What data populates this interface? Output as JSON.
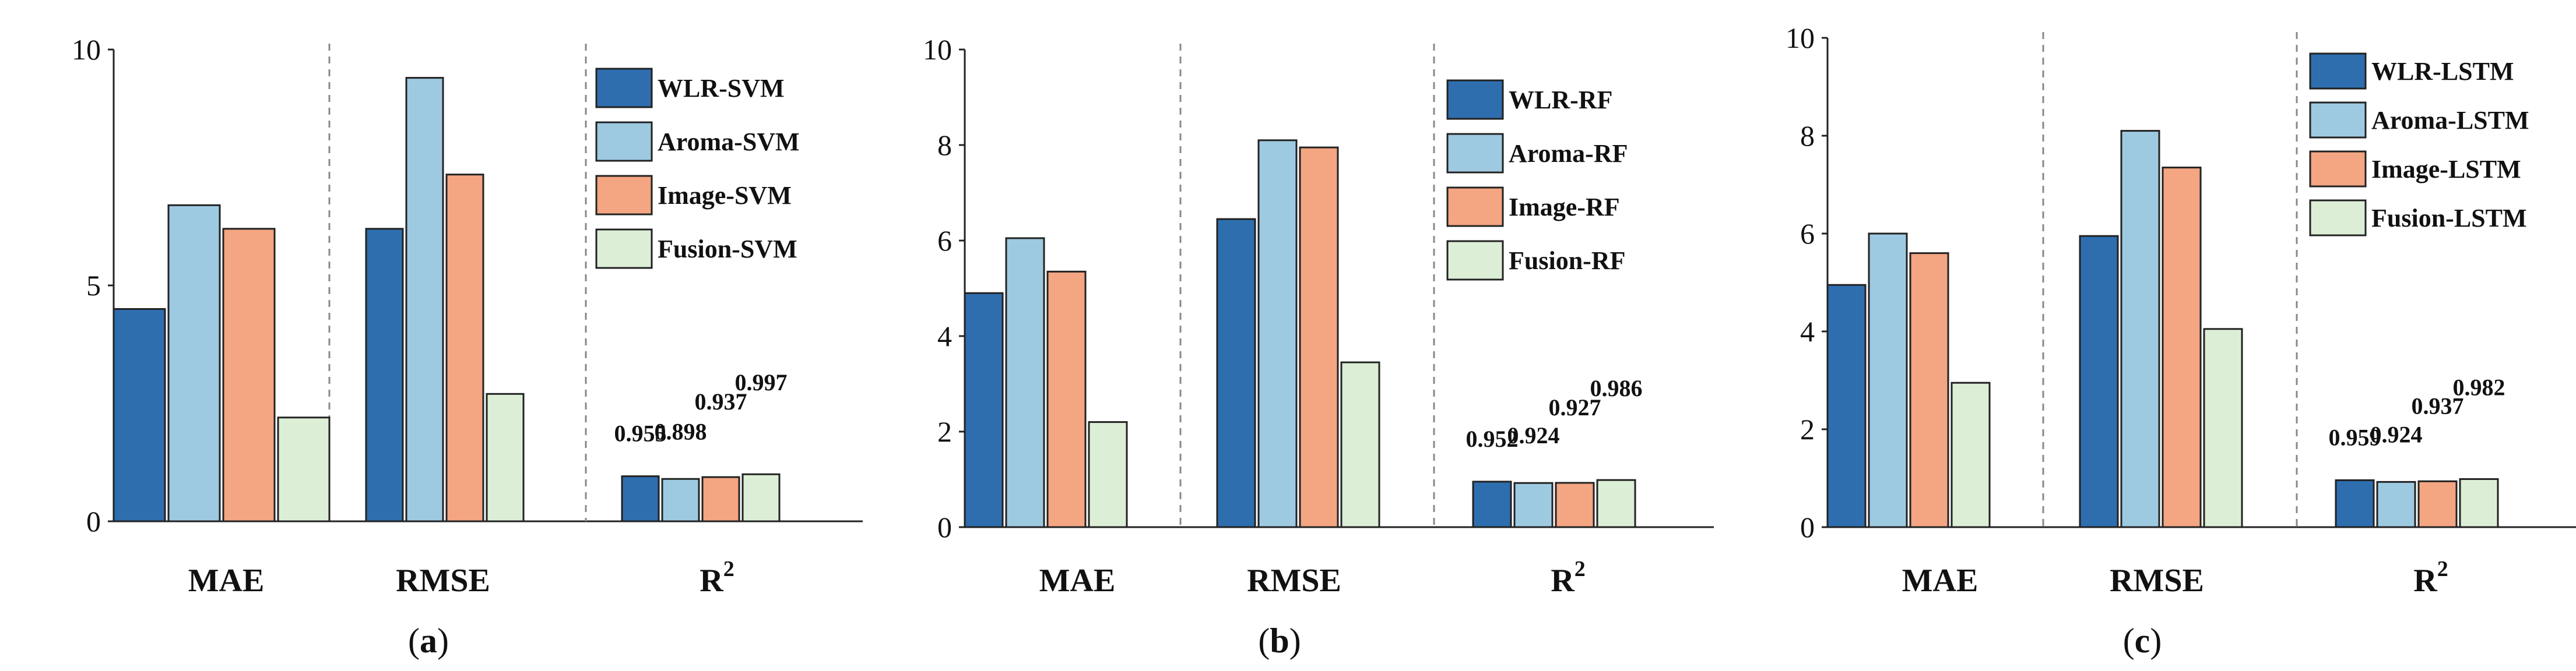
{
  "series_colors": [
    "#2e6eaf",
    "#9ecae1",
    "#f4a582",
    "#dcefd6"
  ],
  "chart_data": [
    {
      "type": "bar",
      "panel": "(a)",
      "panel_letter": "a",
      "categories": [
        "MAE",
        "RMSE",
        "R2"
      ],
      "ylim": [
        0,
        10
      ],
      "yticks": [
        "0",
        "5",
        "10"
      ],
      "ytick_values": [
        0,
        5,
        10
      ],
      "series": [
        {
          "name": "WLR-SVM",
          "values": [
            4.5,
            6.2,
            0.955
          ],
          "r2_label": "0.955"
        },
        {
          "name": "Aroma-SVM",
          "values": [
            6.7,
            9.4,
            0.898
          ],
          "r2_label": "0.898"
        },
        {
          "name": "Image-SVM",
          "values": [
            6.2,
            7.35,
            0.937
          ],
          "r2_label": "0.937"
        },
        {
          "name": "Fusion-SVM",
          "values": [
            2.2,
            2.7,
            0.997
          ],
          "r2_label": "0.997"
        }
      ]
    },
    {
      "type": "bar",
      "panel": "(b)",
      "panel_letter": "b",
      "categories": [
        "MAE",
        "RMSE",
        "R2"
      ],
      "ylim": [
        0,
        10
      ],
      "yticks": [
        "0",
        "2",
        "4",
        "6",
        "8",
        "10"
      ],
      "ytick_values": [
        0,
        2,
        4,
        6,
        8,
        10
      ],
      "series": [
        {
          "name": "WLR-RF",
          "values": [
            4.9,
            6.45,
            0.952
          ],
          "r2_label": "0.952"
        },
        {
          "name": "Aroma-RF",
          "values": [
            6.05,
            8.1,
            0.924
          ],
          "r2_label": "0.924"
        },
        {
          "name": "Image-RF",
          "values": [
            5.35,
            7.95,
            0.927
          ],
          "r2_label": "0.927"
        },
        {
          "name": "Fusion-RF",
          "values": [
            2.2,
            3.45,
            0.986
          ],
          "r2_label": "0.986"
        }
      ]
    },
    {
      "type": "bar",
      "panel": "(c)",
      "panel_letter": "c",
      "categories": [
        "MAE",
        "RMSE",
        "R2"
      ],
      "ylim": [
        0,
        10
      ],
      "yticks": [
        "0",
        "2",
        "4",
        "6",
        "8",
        "10"
      ],
      "ytick_values": [
        0,
        2,
        4,
        6,
        8,
        10
      ],
      "series": [
        {
          "name": "WLR-LSTM",
          "values": [
            4.95,
            5.95,
            0.959
          ],
          "r2_label": "0.959"
        },
        {
          "name": "Aroma-LSTM",
          "values": [
            6.0,
            8.1,
            0.924
          ],
          "r2_label": "0.924"
        },
        {
          "name": "Image-LSTM",
          "values": [
            5.6,
            7.35,
            0.937
          ],
          "r2_label": "0.937"
        },
        {
          "name": "Fusion-LSTM",
          "values": [
            2.95,
            4.05,
            0.982
          ],
          "r2_label": "0.982"
        }
      ]
    }
  ]
}
